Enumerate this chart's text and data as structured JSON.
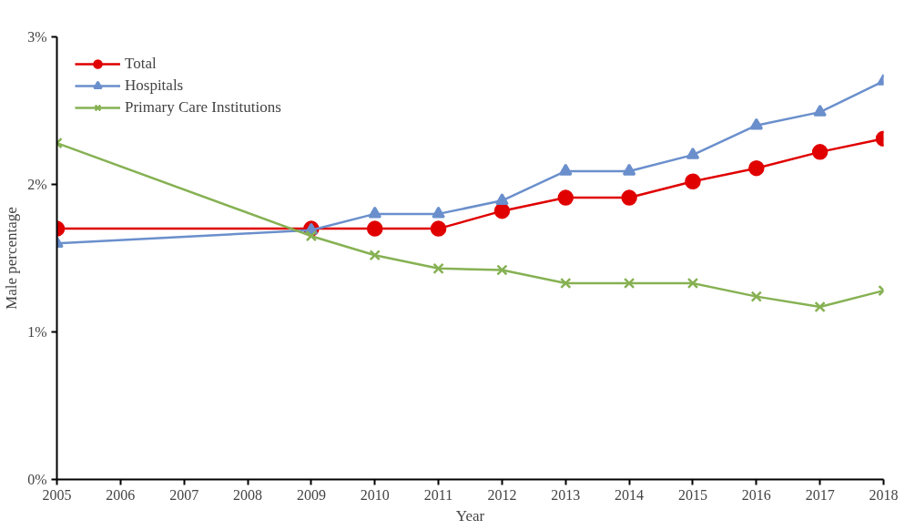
{
  "chart_data": {
    "type": "line",
    "xlabel": "Year",
    "ylabel": "Male percentage",
    "x": [
      2005,
      2009,
      2010,
      2011,
      2012,
      2013,
      2014,
      2015,
      2016,
      2017,
      2018
    ],
    "series": [
      {
        "name": "Total",
        "color": "#e00000",
        "marker": "circle",
        "values": [
          1.7,
          1.7,
          1.7,
          1.7,
          1.82,
          1.91,
          1.91,
          2.02,
          2.11,
          2.22,
          2.31
        ]
      },
      {
        "name": "Hospitals",
        "color": "#6a8fcc",
        "marker": "triangle",
        "values": [
          1.6,
          1.69,
          1.8,
          1.8,
          1.89,
          2.09,
          2.09,
          2.2,
          2.4,
          2.49,
          2.7
        ]
      },
      {
        "name": "Primary Care Institutions",
        "color": "#86b153",
        "marker": "cross",
        "values": [
          2.28,
          1.65,
          1.52,
          1.43,
          1.42,
          1.33,
          1.33,
          1.33,
          1.24,
          1.17,
          1.28
        ]
      }
    ],
    "xlim": [
      2005,
      2018
    ],
    "xticks": [
      2005,
      2006,
      2007,
      2008,
      2009,
      2010,
      2011,
      2012,
      2013,
      2014,
      2015,
      2016,
      2017,
      2018
    ],
    "ylim": [
      0,
      3
    ],
    "yticks": [
      {
        "value": 0,
        "label": "0%"
      },
      {
        "value": 1,
        "label": "1%"
      },
      {
        "value": 2,
        "label": "2%"
      },
      {
        "value": 3,
        "label": "3%"
      }
    ],
    "grid": false,
    "legend": "top left"
  }
}
